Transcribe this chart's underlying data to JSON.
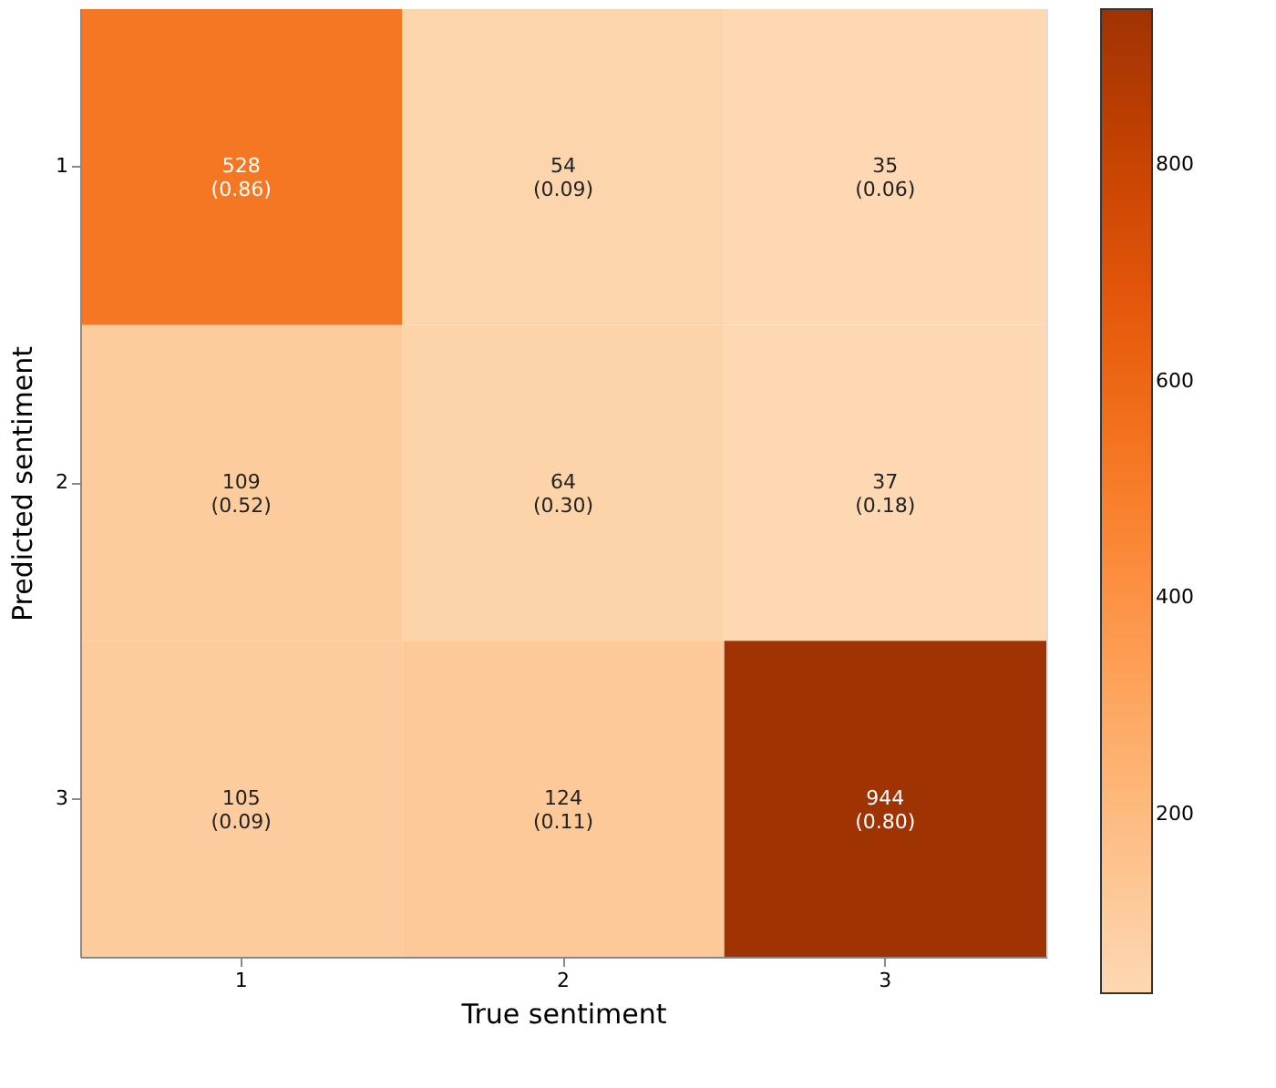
{
  "chart_data": {
    "type": "heatmap",
    "xlabel": "True sentiment",
    "ylabel": "Predicted sentiment",
    "categories": [
      "1",
      "2",
      "3"
    ],
    "y_categories": [
      "1",
      "2",
      "3"
    ],
    "cells": [
      [
        528,
        54,
        35
      ],
      [
        109,
        64,
        37
      ],
      [
        105,
        124,
        944
      ]
    ],
    "cell_labels": [
      [
        "528\n(0.86)",
        "54\n(0.09)",
        "35\n(0.06)"
      ],
      [
        "109\n(0.52)",
        "64\n(0.30)",
        "37\n(0.18)"
      ],
      [
        "105\n(0.09)",
        "124\n(0.11)",
        "944\n(0.80)"
      ]
    ],
    "clim": [
      35,
      944
    ],
    "cticks": [
      200,
      400,
      600,
      800
    ]
  }
}
